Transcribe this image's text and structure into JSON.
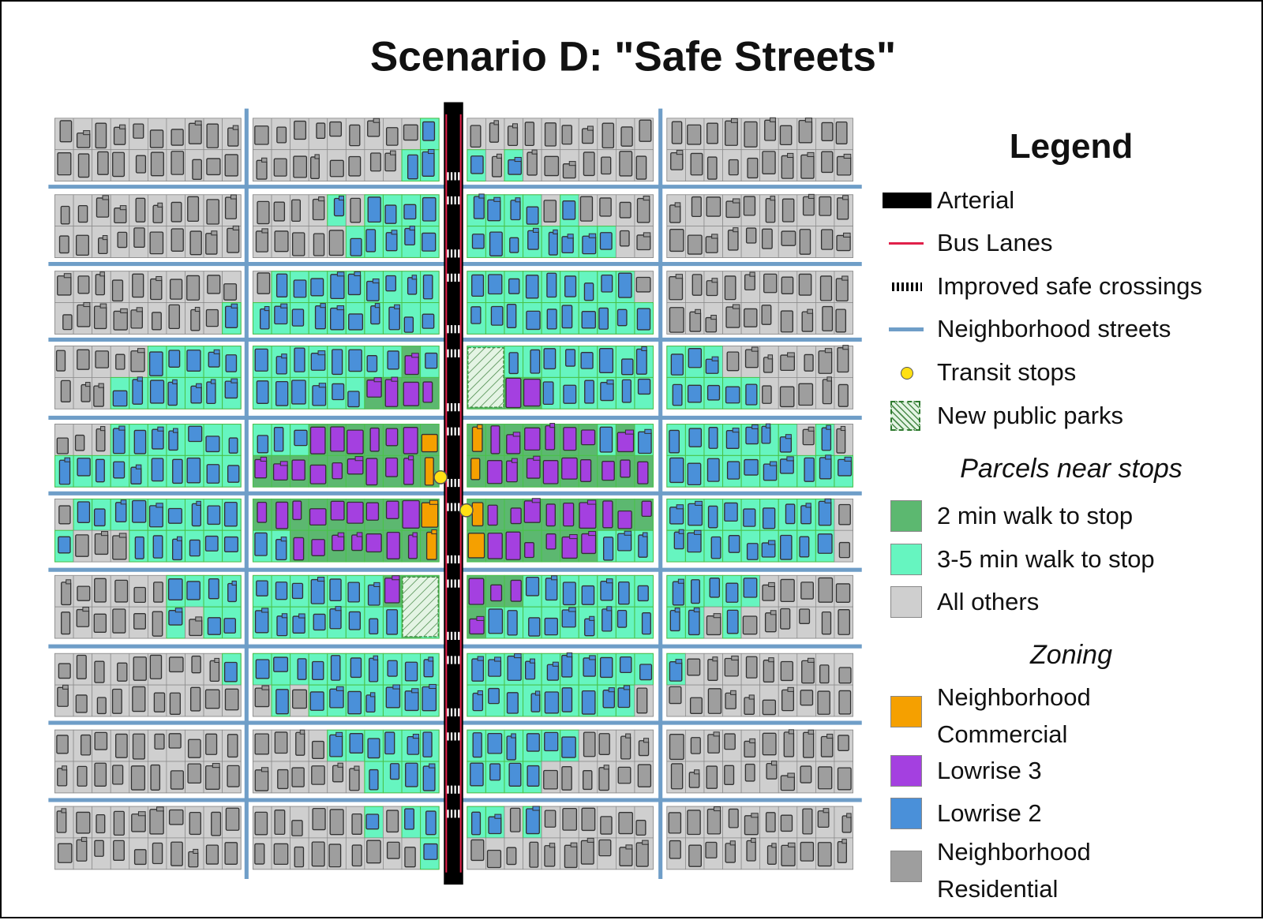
{
  "title": "Scenario D: \"Safe Streets\"",
  "legend": {
    "title": "Legend",
    "items": [
      "Arterial",
      "Bus Lanes",
      "Improved safe crossings",
      "Neighborhood streets",
      "Transit stops",
      "New public parks"
    ],
    "parcels_heading": "Parcels near stops",
    "parcels": [
      {
        "label": "2 min walk to stop",
        "color": "#5cb870"
      },
      {
        "label": "3-5 min walk to stop",
        "color": "#66f5c0"
      },
      {
        "label": "All others",
        "color": "#cfcfcf"
      }
    ],
    "zoning_heading": "Zoning",
    "zoning": [
      {
        "label": "Neighborhood Commercial",
        "color": "#f5a000"
      },
      {
        "label": "Lowrise 3",
        "color": "#a440e0"
      },
      {
        "label": "Lowrise 2",
        "color": "#4a90d9"
      },
      {
        "label": "Neighborhood Residential",
        "color": "#9e9e9e"
      }
    ]
  }
}
